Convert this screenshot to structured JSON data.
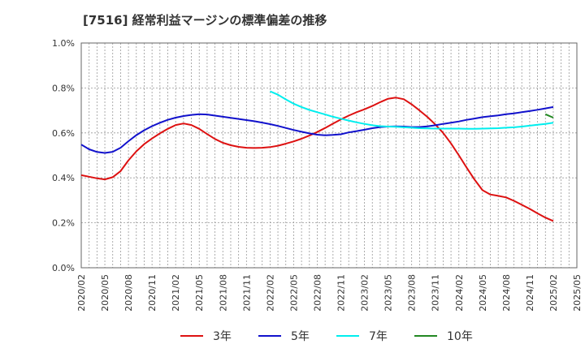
{
  "chart_data": {
    "type": "line",
    "title": "[7516]  経常利益マージンの標準偏差の推移",
    "xlabel": "",
    "ylabel": "",
    "ylim": [
      0,
      1.0
    ],
    "y_ticks": [
      "0.0%",
      "0.2%",
      "0.4%",
      "0.6%",
      "0.8%",
      "1.0%"
    ],
    "x_ticks": [
      "2020/02",
      "2020/05",
      "2020/08",
      "2020/11",
      "2021/02",
      "2021/05",
      "2021/08",
      "2021/11",
      "2022/02",
      "2022/05",
      "2022/08",
      "2022/11",
      "2023/02",
      "2023/05",
      "2023/08",
      "2023/11",
      "2024/02",
      "2024/05",
      "2024/08",
      "2024/11",
      "2025/02",
      "2025/05"
    ],
    "grid": true,
    "legend_position": "bottom",
    "series": [
      {
        "name": "3年",
        "color": "#dd1111",
        "x": [
          "2020/02",
          "2020/03",
          "2020/04",
          "2020/05",
          "2020/06",
          "2020/07",
          "2020/08",
          "2020/09",
          "2020/10",
          "2020/11",
          "2020/12",
          "2021/01",
          "2021/02",
          "2021/03",
          "2021/04",
          "2021/05",
          "2021/06",
          "2021/07",
          "2021/08",
          "2021/09",
          "2021/10",
          "2021/11",
          "2021/12",
          "2022/01",
          "2022/02",
          "2022/03",
          "2022/04",
          "2022/05",
          "2022/06",
          "2022/07",
          "2022/08",
          "2022/09",
          "2022/10",
          "2022/11",
          "2022/12",
          "2023/01",
          "2023/02",
          "2023/03",
          "2023/04",
          "2023/05",
          "2023/06",
          "2023/07",
          "2023/08",
          "2023/09",
          "2023/10",
          "2023/11",
          "2023/12",
          "2024/01",
          "2024/02",
          "2024/03",
          "2024/04",
          "2024/05",
          "2024/06",
          "2024/07",
          "2024/08",
          "2024/09",
          "2024/10",
          "2024/11",
          "2024/12",
          "2025/01",
          "2025/02"
        ],
        "values": [
          0.412,
          0.405,
          0.398,
          0.393,
          0.403,
          0.43,
          0.478,
          0.518,
          0.55,
          0.575,
          0.598,
          0.618,
          0.635,
          0.642,
          0.635,
          0.618,
          0.595,
          0.573,
          0.556,
          0.545,
          0.538,
          0.534,
          0.533,
          0.534,
          0.537,
          0.543,
          0.552,
          0.562,
          0.574,
          0.588,
          0.604,
          0.622,
          0.641,
          0.66,
          0.677,
          0.692,
          0.705,
          0.72,
          0.737,
          0.752,
          0.757,
          0.75,
          0.727,
          0.7,
          0.671,
          0.638,
          0.6,
          0.553,
          0.5,
          0.445,
          0.392,
          0.345,
          0.326,
          0.32,
          0.313,
          0.298,
          0.28,
          0.262,
          0.242,
          0.223,
          0.208
        ]
      },
      {
        "name": "5年",
        "color": "#1111cc",
        "x": [
          "2020/02",
          "2020/03",
          "2020/04",
          "2020/05",
          "2020/06",
          "2020/07",
          "2020/08",
          "2020/09",
          "2020/10",
          "2020/11",
          "2020/12",
          "2021/01",
          "2021/02",
          "2021/03",
          "2021/04",
          "2021/05",
          "2021/06",
          "2021/07",
          "2021/08",
          "2021/09",
          "2021/10",
          "2021/11",
          "2021/12",
          "2022/01",
          "2022/02",
          "2022/03",
          "2022/04",
          "2022/05",
          "2022/06",
          "2022/07",
          "2022/08",
          "2022/09",
          "2022/10",
          "2022/11",
          "2022/12",
          "2023/01",
          "2023/02",
          "2023/03",
          "2023/04",
          "2023/05",
          "2023/06",
          "2023/07",
          "2023/08",
          "2023/09",
          "2023/10",
          "2023/11",
          "2023/12",
          "2024/01",
          "2024/02",
          "2024/03",
          "2024/04",
          "2024/05",
          "2024/06",
          "2024/07",
          "2024/08",
          "2024/09",
          "2024/10",
          "2024/11",
          "2024/12",
          "2025/01",
          "2025/02"
        ],
        "values": [
          0.548,
          0.527,
          0.515,
          0.511,
          0.516,
          0.534,
          0.563,
          0.59,
          0.612,
          0.63,
          0.645,
          0.658,
          0.668,
          0.675,
          0.68,
          0.683,
          0.682,
          0.677,
          0.672,
          0.667,
          0.662,
          0.657,
          0.652,
          0.646,
          0.639,
          0.631,
          0.622,
          0.613,
          0.605,
          0.598,
          0.592,
          0.589,
          0.591,
          0.594,
          0.602,
          0.608,
          0.614,
          0.621,
          0.626,
          0.628,
          0.629,
          0.628,
          0.626,
          0.626,
          0.629,
          0.634,
          0.64,
          0.645,
          0.651,
          0.658,
          0.664,
          0.67,
          0.674,
          0.678,
          0.683,
          0.687,
          0.692,
          0.697,
          0.703,
          0.709,
          0.715
        ]
      },
      {
        "name": "7年",
        "color": "#00eeee",
        "x": [
          "2022/02",
          "2022/03",
          "2022/04",
          "2022/05",
          "2022/06",
          "2022/07",
          "2022/08",
          "2022/09",
          "2022/10",
          "2022/11",
          "2022/12",
          "2023/01",
          "2023/02",
          "2023/03",
          "2023/04",
          "2023/05",
          "2023/06",
          "2023/07",
          "2023/08",
          "2023/09",
          "2023/10",
          "2023/11",
          "2023/12",
          "2024/01",
          "2024/02",
          "2024/03",
          "2024/04",
          "2024/05",
          "2024/06",
          "2024/07",
          "2024/08",
          "2024/09",
          "2024/10",
          "2024/11",
          "2024/12",
          "2025/01",
          "2025/02"
        ],
        "values": [
          0.785,
          0.77,
          0.749,
          0.73,
          0.715,
          0.702,
          0.692,
          0.682,
          0.672,
          0.663,
          0.655,
          0.647,
          0.64,
          0.634,
          0.63,
          0.628,
          0.627,
          0.625,
          0.623,
          0.621,
          0.62,
          0.619,
          0.619,
          0.619,
          0.619,
          0.618,
          0.618,
          0.619,
          0.62,
          0.621,
          0.623,
          0.625,
          0.628,
          0.632,
          0.636,
          0.64,
          0.645
        ]
      },
      {
        "name": "10年",
        "color": "#228822",
        "x": [
          "2025/01",
          "2025/02"
        ],
        "values": [
          0.683,
          0.668
        ]
      }
    ]
  }
}
